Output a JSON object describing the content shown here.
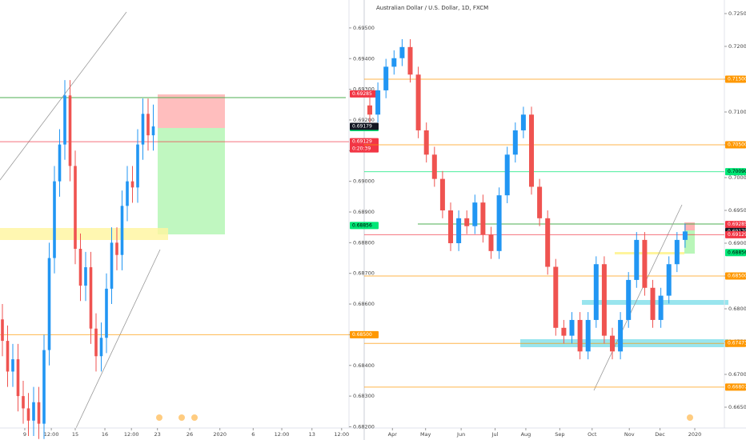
{
  "chart_data": [
    {
      "type": "candlestick",
      "up_color": "#2196f3",
      "down_color": "#ef5350",
      "open": [
        0.6855,
        0.6848,
        0.6838,
        0.6842,
        0.683,
        0.6826,
        0.6822,
        0.6828,
        0.6821,
        0.6845,
        0.6875,
        0.69,
        0.6912,
        0.6928,
        0.6905,
        0.6878,
        0.6866,
        0.6872,
        0.6852,
        0.6843,
        0.6849,
        0.6865,
        0.688,
        0.6876,
        0.6892,
        0.69,
        0.6898,
        0.6912,
        0.6922,
        0.6915
      ],
      "high": [
        0.686,
        0.6853,
        0.6847,
        0.6847,
        0.6835,
        0.6831,
        0.6833,
        0.6833,
        0.685,
        0.688,
        0.6905,
        0.6917,
        0.6933,
        0.6933,
        0.691,
        0.6883,
        0.6877,
        0.6877,
        0.6857,
        0.6854,
        0.687,
        0.6885,
        0.6885,
        0.6897,
        0.6905,
        0.6905,
        0.6917,
        0.6927,
        0.6927,
        0.6925
      ],
      "low": [
        0.6843,
        0.6833,
        0.6833,
        0.6825,
        0.6821,
        0.6817,
        0.6817,
        0.6816,
        0.6816,
        0.684,
        0.687,
        0.6895,
        0.6907,
        0.69,
        0.6873,
        0.6861,
        0.6861,
        0.6847,
        0.6838,
        0.6838,
        0.6844,
        0.686,
        0.6871,
        0.6871,
        0.6887,
        0.6893,
        0.6893,
        0.6907,
        0.691,
        0.691
      ],
      "close": [
        0.6848,
        0.6838,
        0.6842,
        0.683,
        0.6826,
        0.6822,
        0.6828,
        0.6821,
        0.6845,
        0.6875,
        0.69,
        0.6912,
        0.6928,
        0.6905,
        0.6878,
        0.6866,
        0.6872,
        0.6852,
        0.6843,
        0.6849,
        0.6865,
        0.688,
        0.6876,
        0.6892,
        0.69,
        0.6898,
        0.6912,
        0.6922,
        0.6915,
        0.69179
      ],
      "ylim": [
        0.68196,
        0.69591
      ],
      "yticks": [
        {
          "value": 0.695,
          "label": "0.69500"
        },
        {
          "value": 0.694,
          "label": "0.69400"
        },
        {
          "value": 0.693,
          "label": "0.69300"
        },
        {
          "value": 0.692,
          "label": "0.69200"
        },
        {
          "value": 0.691,
          "label": "0.69100"
        },
        {
          "value": 0.69,
          "label": "0.69000"
        },
        {
          "value": 0.689,
          "label": "0.68900"
        },
        {
          "value": 0.688,
          "label": "0.68800"
        },
        {
          "value": 0.687,
          "label": "0.68700"
        },
        {
          "value": 0.686,
          "label": "0.68600"
        },
        {
          "value": 0.685,
          "label": "0.68500"
        },
        {
          "value": 0.684,
          "label": "0.68400"
        },
        {
          "value": 0.683,
          "label": "0.68300"
        },
        {
          "value": 0.682,
          "label": "0.68200"
        }
      ],
      "xticks": [
        {
          "value": 4.3,
          "label": "9"
        },
        {
          "value": 9.4,
          "label": "12:00"
        },
        {
          "value": 14,
          "label": "15"
        },
        {
          "value": 19.7,
          "label": "16"
        },
        {
          "value": 24.8,
          "label": "12:00"
        },
        {
          "value": 29.8,
          "label": "23"
        },
        {
          "value": 36,
          "label": "26"
        },
        {
          "value": 41.8,
          "label": "2020"
        },
        {
          "value": 48.2,
          "label": "6"
        },
        {
          "value": 53.7,
          "label": "12:00"
        },
        {
          "value": 59.5,
          "label": "13"
        },
        {
          "value": 65.2,
          "label": "12:00"
        }
      ],
      "tags": [
        {
          "value": 0.69285,
          "color": "#f23645",
          "text_color": "#ffffff"
        },
        {
          "value": 0.69175,
          "color": "#00e676",
          "text_color": "#000000"
        },
        {
          "value": 0.69179,
          "color": "#131722",
          "text_color": "#ffffff"
        },
        {
          "value": 0.69129,
          "color": "#f23645",
          "text_color": "#ffffff",
          "line": true,
          "countdown": "0:20:39"
        },
        {
          "value": 0.68856,
          "color": "#00e676",
          "text_color": "#000000"
        },
        {
          "value": 0.685,
          "label": "0.68500",
          "color": "#ff9800",
          "text_color": "#ffffff",
          "line": true
        }
      ]
    },
    {
      "type": "candlestick",
      "title": "Australian Dollar / U.S. Dollar, 1D, FXCM",
      "up_color": "#2196f3",
      "down_color": "#ef5350",
      "open": [
        0.711,
        0.7096,
        0.7133,
        0.7169,
        0.7182,
        0.7199,
        0.7157,
        0.7072,
        0.7035,
        0.6998,
        0.695,
        0.69,
        0.6938,
        0.6926,
        0.6962,
        0.6913,
        0.6888,
        0.6973,
        0.7035,
        0.7072,
        0.7096,
        0.6986,
        0.6938,
        0.6864,
        0.6771,
        0.6759,
        0.6783,
        0.6735,
        0.6783,
        0.6868,
        0.6759,
        0.6735,
        0.6783,
        0.6844,
        0.6905,
        0.6832,
        0.6783,
        0.682,
        0.6868,
        0.6905
      ],
      "high": [
        0.7122,
        0.7145,
        0.7181,
        0.7194,
        0.7211,
        0.7211,
        0.7169,
        0.7084,
        0.7047,
        0.701,
        0.6962,
        0.695,
        0.695,
        0.6974,
        0.6974,
        0.6925,
        0.6985,
        0.7047,
        0.7084,
        0.7108,
        0.7108,
        0.6998,
        0.695,
        0.6876,
        0.6783,
        0.6795,
        0.6795,
        0.6795,
        0.688,
        0.688,
        0.6771,
        0.6795,
        0.6856,
        0.6917,
        0.6917,
        0.6844,
        0.6832,
        0.688,
        0.6917,
        0.693
      ],
      "low": [
        0.7084,
        0.7084,
        0.7121,
        0.7157,
        0.717,
        0.7145,
        0.706,
        0.7023,
        0.6986,
        0.6938,
        0.6888,
        0.6888,
        0.6914,
        0.6914,
        0.6901,
        0.6876,
        0.6876,
        0.6961,
        0.7023,
        0.706,
        0.6974,
        0.6926,
        0.6852,
        0.6759,
        0.6747,
        0.6747,
        0.6723,
        0.6723,
        0.6771,
        0.6747,
        0.6723,
        0.6723,
        0.6771,
        0.6832,
        0.682,
        0.6771,
        0.6771,
        0.6808,
        0.6856,
        0.6893
      ],
      "close": [
        0.7096,
        0.7133,
        0.7169,
        0.7182,
        0.7199,
        0.7157,
        0.7072,
        0.7035,
        0.6998,
        0.695,
        0.69,
        0.6938,
        0.6926,
        0.6962,
        0.6913,
        0.6888,
        0.6973,
        0.7035,
        0.7072,
        0.7096,
        0.6986,
        0.6938,
        0.6864,
        0.6771,
        0.6759,
        0.6783,
        0.6735,
        0.6783,
        0.6868,
        0.6759,
        0.6735,
        0.6783,
        0.6844,
        0.6905,
        0.6832,
        0.6783,
        0.682,
        0.6868,
        0.6905,
        0.69179
      ],
      "ylim": [
        0.66183,
        0.72707
      ],
      "yticks": [
        {
          "value": 0.725,
          "label": "0.72500"
        },
        {
          "value": 0.72,
          "label": "0.72000"
        },
        {
          "value": 0.715,
          "label": "0.71500"
        },
        {
          "value": 0.71,
          "label": "0.71000"
        },
        {
          "value": 0.705,
          "label": "0.70500"
        },
        {
          "value": 0.7,
          "label": "0.70000"
        },
        {
          "value": 0.695,
          "label": "0.69500"
        },
        {
          "value": 0.69,
          "label": "0.69000"
        },
        {
          "value": 0.685,
          "label": "0.68500"
        },
        {
          "value": 0.68,
          "label": "0.68000"
        },
        {
          "value": 0.675,
          "label": "0.67500"
        },
        {
          "value": 0.67,
          "label": "0.67000"
        },
        {
          "value": 0.665,
          "label": "0.66500"
        }
      ],
      "xticks": [
        {
          "value": 2.8,
          "label": "Apr"
        },
        {
          "value": 6.9,
          "label": "May"
        },
        {
          "value": 11.3,
          "label": "Jun"
        },
        {
          "value": 15.5,
          "label": "Jul"
        },
        {
          "value": 19.3,
          "label": "Aug"
        },
        {
          "value": 23.5,
          "label": "Sep"
        },
        {
          "value": 27.5,
          "label": "Oct"
        },
        {
          "value": 32.1,
          "label": "Nov"
        },
        {
          "value": 35.9,
          "label": "Dec"
        },
        {
          "value": 40.2,
          "label": "2020"
        }
      ],
      "tags": [
        {
          "value": 0.715,
          "label": "0.71500",
          "color": "#ff9800",
          "text_color": "#ffffff",
          "line": true
        },
        {
          "value": 0.705,
          "label": "0.70500",
          "color": "#ff9800",
          "text_color": "#ffffff",
          "line": true
        },
        {
          "value": 0.7009,
          "label": "0.70090",
          "color": "#00e676",
          "text_color": "#000000",
          "line": true
        },
        {
          "value": 0.69285,
          "color": "#f23645",
          "text_color": "#ffffff"
        },
        {
          "value": 0.69175,
          "color": "#00e676",
          "text_color": "#000000"
        },
        {
          "value": 0.69179,
          "color": "#131722",
          "text_color": "#ffffff"
        },
        {
          "value": 0.69129,
          "color": "#f23645",
          "text_color": "#ffffff",
          "line": true
        },
        {
          "value": 0.68856,
          "color": "#00e676",
          "text_color": "#000000"
        },
        {
          "value": 0.685,
          "label": "0.68500",
          "color": "#ff9800",
          "text_color": "#ffffff",
          "line": true
        },
        {
          "value": 0.67473,
          "color": "#ff9800",
          "text_color": "#ffffff",
          "line": true
        },
        {
          "value": 0.66807,
          "color": "#ff9800",
          "text_color": "#ffffff",
          "line": true
        }
      ]
    }
  ]
}
